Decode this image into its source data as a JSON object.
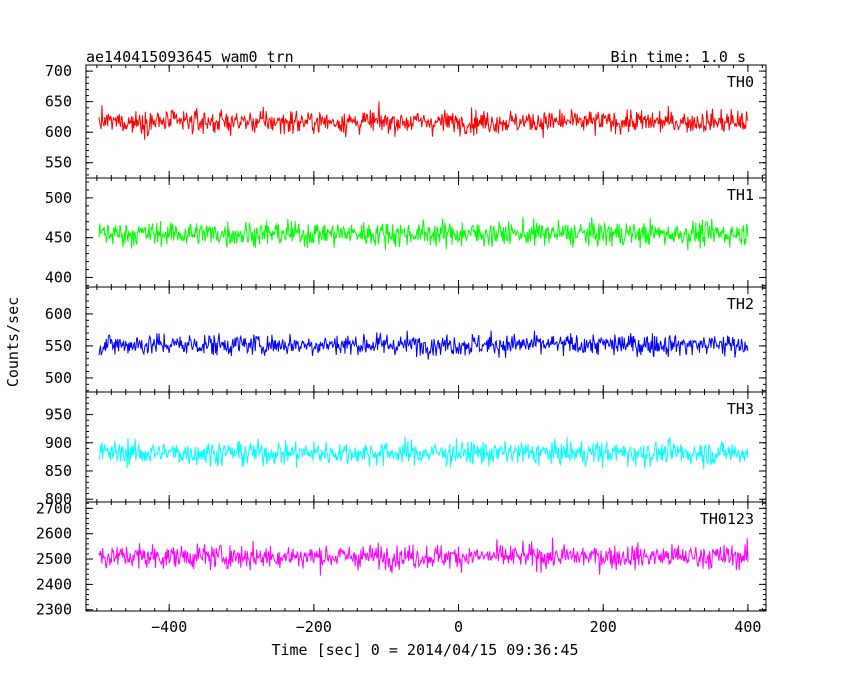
{
  "chart_data": {
    "type": "line",
    "title": "ae140415093645_wam0_trn",
    "subtitle": "Bin time: 1.0 s",
    "xlabel": "Time [sec] 0 = 2014/04/15 09:36:45",
    "ylabel": "Counts/sec",
    "xlim": [
      -515,
      425
    ],
    "x_start": -497,
    "x_end": 400,
    "x_step": 1,
    "x_ticks": [
      -400,
      -200,
      0,
      200,
      400
    ],
    "x_tick_labels": [
      "−400",
      "−200",
      "0",
      "200",
      "400"
    ],
    "grid": false,
    "panels": [
      {
        "name": "TH0",
        "color": "#ff0000",
        "ylim": [
          525,
          710
        ],
        "y_ticks": [
          550,
          600,
          650,
          700
        ],
        "y_tick_labels": [
          "550",
          "600",
          "650",
          "700"
        ],
        "mean": 617,
        "noise_sd": 23,
        "range_min": 525,
        "range_max": 710
      },
      {
        "name": "TH1",
        "color": "#00ff00",
        "ylim": [
          388,
          525
        ],
        "y_ticks": [
          400,
          450,
          500
        ],
        "y_tick_labels": [
          "400",
          "450",
          "500"
        ],
        "mean": 455,
        "noise_sd": 19,
        "range_min": 388,
        "range_max": 525
      },
      {
        "name": "TH2",
        "color": "#0000ff",
        "ylim": [
          478,
          642
        ],
        "y_ticks": [
          500,
          550,
          600
        ],
        "y_tick_labels": [
          "500",
          "550",
          "600"
        ],
        "mean": 552,
        "noise_sd": 21,
        "range_min": 478,
        "range_max": 642
      },
      {
        "name": "TH3",
        "color": "#00ffff",
        "ylim": [
          795,
          990
        ],
        "y_ticks": [
          800,
          850,
          900,
          950
        ],
        "y_tick_labels": [
          "800",
          "850",
          "900",
          "950"
        ],
        "mean": 882,
        "noise_sd": 26,
        "range_min": 795,
        "range_max": 990
      },
      {
        "name": "TH0123",
        "color": "#ff00ff",
        "ylim": [
          2295,
          2725
        ],
        "y_ticks": [
          2300,
          2400,
          2500,
          2600,
          2700
        ],
        "y_tick_labels": [
          "2300",
          "2400",
          "2500",
          "2600",
          "2700"
        ],
        "mean": 2510,
        "noise_sd": 58,
        "range_min": 2295,
        "range_max": 2725
      }
    ]
  }
}
